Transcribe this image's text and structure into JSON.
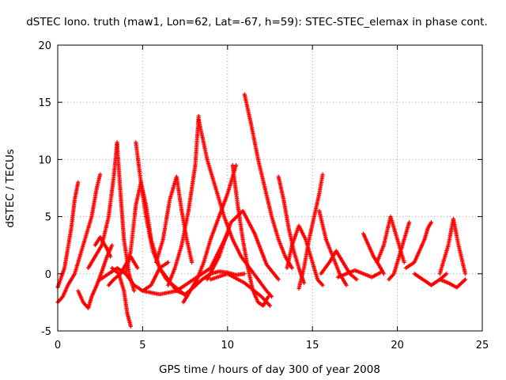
{
  "chart_data": {
    "type": "scatter",
    "title": "dSTEC Iono. truth (maw1, Lon=62, Lat=-67, h=59): STEC-STEC_elemax in phase cont.",
    "xlabel": "GPS time / hours of day 300 of year 2008",
    "ylabel": "dSTEC  / TECUs",
    "xlim": [
      0,
      25
    ],
    "ylim": [
      -5,
      20
    ],
    "xticks": [
      0,
      5,
      10,
      15,
      20,
      25
    ],
    "yticks": [
      -5,
      0,
      5,
      10,
      15,
      20
    ],
    "x_tick_labels": [
      "0",
      "5",
      "10",
      "15",
      "20",
      "25"
    ],
    "y_tick_labels": [
      "-5",
      "0",
      "5",
      "10",
      "15",
      "20"
    ],
    "grid": true,
    "marker": "+",
    "marker_color": "#ff0000",
    "series": [
      {
        "x": [
          0.0,
          0.4,
          0.8,
          1.0,
          1.2
        ],
        "y": [
          -1.2,
          0.5,
          4.0,
          6.5,
          8.0
        ]
      },
      {
        "x": [
          0.0,
          0.3,
          0.6,
          1.0,
          1.5,
          2.0,
          2.3,
          2.5
        ],
        "y": [
          -2.5,
          -2.0,
          -1.0,
          0.0,
          2.5,
          5.0,
          7.5,
          8.7
        ]
      },
      {
        "x": [
          1.2,
          1.5,
          1.8,
          2.0,
          2.3,
          2.6,
          2.9,
          3.2
        ],
        "y": [
          -1.5,
          -2.5,
          -3.0,
          -2.0,
          -1.0,
          0.2,
          1.5,
          2.5
        ]
      },
      {
        "x": [
          1.8,
          2.2,
          2.6,
          3.0,
          3.3,
          3.5
        ],
        "y": [
          0.5,
          1.5,
          2.5,
          5.0,
          8.5,
          11.5
        ]
      },
      {
        "x": [
          3.5,
          3.7,
          3.9,
          4.2,
          4.5
        ],
        "y": [
          11.3,
          7.0,
          3.0,
          0.0,
          -1.5
        ]
      },
      {
        "x": [
          2.2,
          2.5,
          2.9,
          3.1
        ],
        "y": [
          2.5,
          3.2,
          2.2,
          1.5
        ]
      },
      {
        "x": [
          3.2,
          3.6,
          3.9,
          4.1,
          4.3
        ],
        "y": [
          0.5,
          0.0,
          -1.5,
          -3.5,
          -4.6
        ]
      },
      {
        "x": [
          4.0,
          4.3,
          4.6,
          4.9,
          5.2,
          5.5,
          6.0,
          6.5,
          7.0
        ],
        "y": [
          0.0,
          2.0,
          6.0,
          8.0,
          6.0,
          3.0,
          0.5,
          -0.5,
          -1.5
        ]
      },
      {
        "x": [
          4.6,
          4.9,
          5.2,
          5.6,
          6.0,
          6.4,
          6.8,
          7.2,
          7.6
        ],
        "y": [
          11.5,
          8.0,
          5.0,
          2.0,
          0.5,
          -0.5,
          -1.0,
          -1.5,
          -2.0
        ]
      },
      {
        "x": [
          2.5,
          3.5,
          4.0,
          4.5,
          5.0,
          5.5,
          6.0,
          6.5
        ],
        "y": [
          -0.5,
          0.5,
          0.0,
          -1.0,
          -1.5,
          -1.0,
          0.5,
          1.0
        ]
      },
      {
        "x": [
          3.0,
          3.3,
          3.7,
          4.0,
          4.3,
          4.7
        ],
        "y": [
          -1.0,
          -0.5,
          0.0,
          0.8,
          1.5,
          0.5
        ]
      },
      {
        "x": [
          5.8,
          6.2,
          6.6,
          7.0,
          7.3,
          7.6,
          7.9
        ],
        "y": [
          1.0,
          3.0,
          6.5,
          8.5,
          5.5,
          3.0,
          1.0
        ]
      },
      {
        "x": [
          6.5,
          6.9,
          7.3,
          7.7,
          8.1,
          8.3
        ],
        "y": [
          -1.0,
          0.5,
          2.5,
          5.5,
          9.5,
          13.8
        ]
      },
      {
        "x": [
          8.3,
          8.8,
          9.3,
          9.8,
          10.3,
          10.8,
          11.3,
          11.8,
          12.3,
          12.6
        ],
        "y": [
          13.5,
          10.0,
          7.5,
          5.0,
          3.0,
          1.5,
          0.5,
          -0.5,
          -1.5,
          -2.0
        ]
      },
      {
        "x": [
          7.4,
          7.8,
          8.2,
          8.6,
          9.0,
          9.5,
          10.0,
          10.5
        ],
        "y": [
          -2.5,
          -1.5,
          -0.5,
          1.0,
          3.0,
          5.0,
          7.0,
          9.5
        ]
      },
      {
        "x": [
          10.3,
          10.6,
          10.9,
          11.2,
          11.5,
          11.8,
          12.1,
          12.4
        ],
        "y": [
          9.5,
          6.0,
          3.0,
          0.5,
          -1.5,
          -2.5,
          -2.8,
          -2.0
        ]
      },
      {
        "x": [
          5.0,
          6.0,
          7.0,
          8.0,
          8.5,
          9.0,
          9.5,
          10.0
        ],
        "y": [
          -1.5,
          -1.8,
          -1.5,
          -0.5,
          0.0,
          0.5,
          2.0,
          3.5
        ]
      },
      {
        "x": [
          7.0,
          7.5,
          8.0,
          8.5,
          9.0,
          9.5,
          10.0,
          10.5,
          11.0
        ],
        "y": [
          -1.5,
          -1.8,
          -1.2,
          -0.5,
          0.0,
          0.2,
          0.1,
          -0.1,
          0.0
        ]
      },
      {
        "x": [
          11.0,
          11.4,
          11.8,
          12.2,
          12.6,
          13.0,
          13.4,
          13.8
        ],
        "y": [
          15.7,
          13.0,
          10.0,
          7.5,
          5.0,
          3.0,
          1.5,
          0.5
        ]
      },
      {
        "x": [
          8.8,
          9.5,
          10.2,
          10.9,
          11.6,
          12.3,
          13.0
        ],
        "y": [
          -0.5,
          1.5,
          4.5,
          5.5,
          3.5,
          0.8,
          -0.5
        ]
      },
      {
        "x": [
          9.0,
          10.0,
          11.0,
          12.0,
          12.5
        ],
        "y": [
          -0.5,
          0.0,
          -0.8,
          -2.0,
          -2.8
        ]
      },
      {
        "x": [
          13.0,
          13.3,
          13.6,
          13.9,
          14.2,
          14.5
        ],
        "y": [
          8.5,
          6.5,
          4.0,
          2.0,
          0.5,
          -0.8
        ]
      },
      {
        "x": [
          13.5,
          13.8,
          14.2,
          14.6,
          15.0,
          15.3,
          15.6
        ],
        "y": [
          0.5,
          2.5,
          4.2,
          3.0,
          1.0,
          -0.5,
          -1.0
        ]
      },
      {
        "x": [
          14.2,
          14.5,
          14.8,
          15.1,
          15.4,
          15.6
        ],
        "y": [
          -1.3,
          0.5,
          3.0,
          5.0,
          7.0,
          8.7
        ]
      },
      {
        "x": [
          15.4,
          15.8,
          16.2,
          16.6,
          17.0
        ],
        "y": [
          5.5,
          3.0,
          1.5,
          0.0,
          -1.0
        ]
      },
      {
        "x": [
          15.5,
          16.0,
          16.4,
          16.8,
          17.2,
          17.6
        ],
        "y": [
          0.0,
          1.0,
          2.0,
          1.0,
          0.0,
          -0.5
        ]
      },
      {
        "x": [
          16.5,
          17.0,
          17.5,
          18.0,
          18.5,
          19.0
        ],
        "y": [
          -0.3,
          0.0,
          0.3,
          0.0,
          -0.3,
          0.1
        ]
      },
      {
        "x": [
          18.0,
          18.3,
          18.6,
          18.9,
          19.2
        ],
        "y": [
          3.5,
          2.5,
          1.5,
          0.8,
          0.0
        ]
      },
      {
        "x": [
          18.8,
          19.2,
          19.6,
          20.0,
          20.4
        ],
        "y": [
          1.0,
          2.5,
          5.0,
          3.0,
          1.0
        ]
      },
      {
        "x": [
          19.5,
          19.8,
          20.1,
          20.4,
          20.7
        ],
        "y": [
          -0.5,
          0.0,
          1.5,
          3.0,
          4.5
        ]
      },
      {
        "x": [
          20.5,
          21.0,
          21.3,
          21.6,
          21.8,
          22.0
        ],
        "y": [
          0.5,
          1.0,
          2.0,
          3.0,
          4.0,
          4.5
        ]
      },
      {
        "x": [
          21.0,
          21.5,
          22.0,
          22.5,
          22.9
        ],
        "y": [
          0.0,
          -0.5,
          -1.0,
          -0.5,
          0.0
        ]
      },
      {
        "x": [
          22.5,
          23.0,
          23.3,
          23.6,
          24.0
        ],
        "y": [
          0.0,
          2.5,
          4.8,
          2.5,
          0.0
        ]
      },
      {
        "x": [
          22.5,
          23.0,
          23.5,
          24.0
        ],
        "y": [
          -0.5,
          -0.8,
          -1.2,
          -0.5
        ]
      }
    ]
  }
}
